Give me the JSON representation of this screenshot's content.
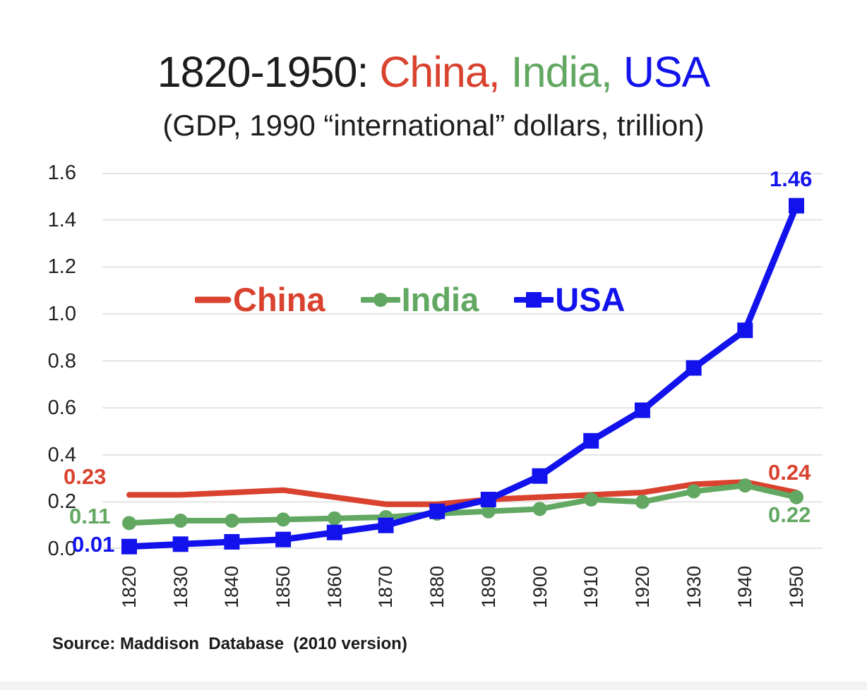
{
  "title": {
    "parts": [
      {
        "text": "1820-1950: ",
        "color": "#1c1c1c"
      },
      {
        "text": "China,",
        "color": "#d9422e"
      },
      {
        "text": " India,",
        "color": "#62a862"
      },
      {
        "text": " USA",
        "color": "#1212ec"
      }
    ]
  },
  "subtitle": "(GDP, 1990 “international” dollars, trillion)",
  "source": "Source: Maddison  Database  (2010 version)",
  "colors": {
    "grid": "#e3e3e3",
    "text": "#212121",
    "china": "#d9422e",
    "india": "#62a862",
    "usa": "#1212ec"
  },
  "point_labels": {
    "china_start": "0.23",
    "india_start": "0.11",
    "usa_start": "0.01",
    "usa_end": "1.46",
    "china_end": "0.24",
    "india_end": "0.22"
  },
  "chart_data": {
    "type": "line",
    "title": "1820-1950: China, India, USA",
    "subtitle": "(GDP, 1990 “international” dollars, trillion)",
    "xlabel": "",
    "ylabel": "",
    "x": [
      1820,
      1830,
      1840,
      1850,
      1860,
      1870,
      1880,
      1890,
      1900,
      1910,
      1920,
      1930,
      1940,
      1950
    ],
    "series": [
      {
        "name": "China",
        "color": "#d9422e",
        "marker": "none",
        "values": [
          0.23,
          0.23,
          0.24,
          0.25,
          0.22,
          0.19,
          0.19,
          0.21,
          0.22,
          0.23,
          0.24,
          0.275,
          0.285,
          0.24
        ]
      },
      {
        "name": "India",
        "color": "#62a862",
        "marker": "circle",
        "values": [
          0.11,
          0.12,
          0.12,
          0.125,
          0.13,
          0.135,
          0.15,
          0.16,
          0.17,
          0.21,
          0.2,
          0.245,
          0.27,
          0.22
        ]
      },
      {
        "name": "USA",
        "color": "#1212ec",
        "marker": "square",
        "values": [
          0.01,
          0.02,
          0.03,
          0.04,
          0.07,
          0.1,
          0.16,
          0.21,
          0.31,
          0.46,
          0.59,
          0.77,
          0.93,
          1.46
        ]
      }
    ],
    "ylim": [
      0,
      1.6
    ],
    "yticks": [
      0.0,
      0.2,
      0.4,
      0.6,
      0.8,
      1.0,
      1.2,
      1.4,
      1.6
    ],
    "grid": true,
    "legend_position": "inside-upper-middle",
    "annotations": [
      "0.23",
      "0.11",
      "0.01",
      "1.46",
      "0.24",
      "0.22"
    ]
  }
}
